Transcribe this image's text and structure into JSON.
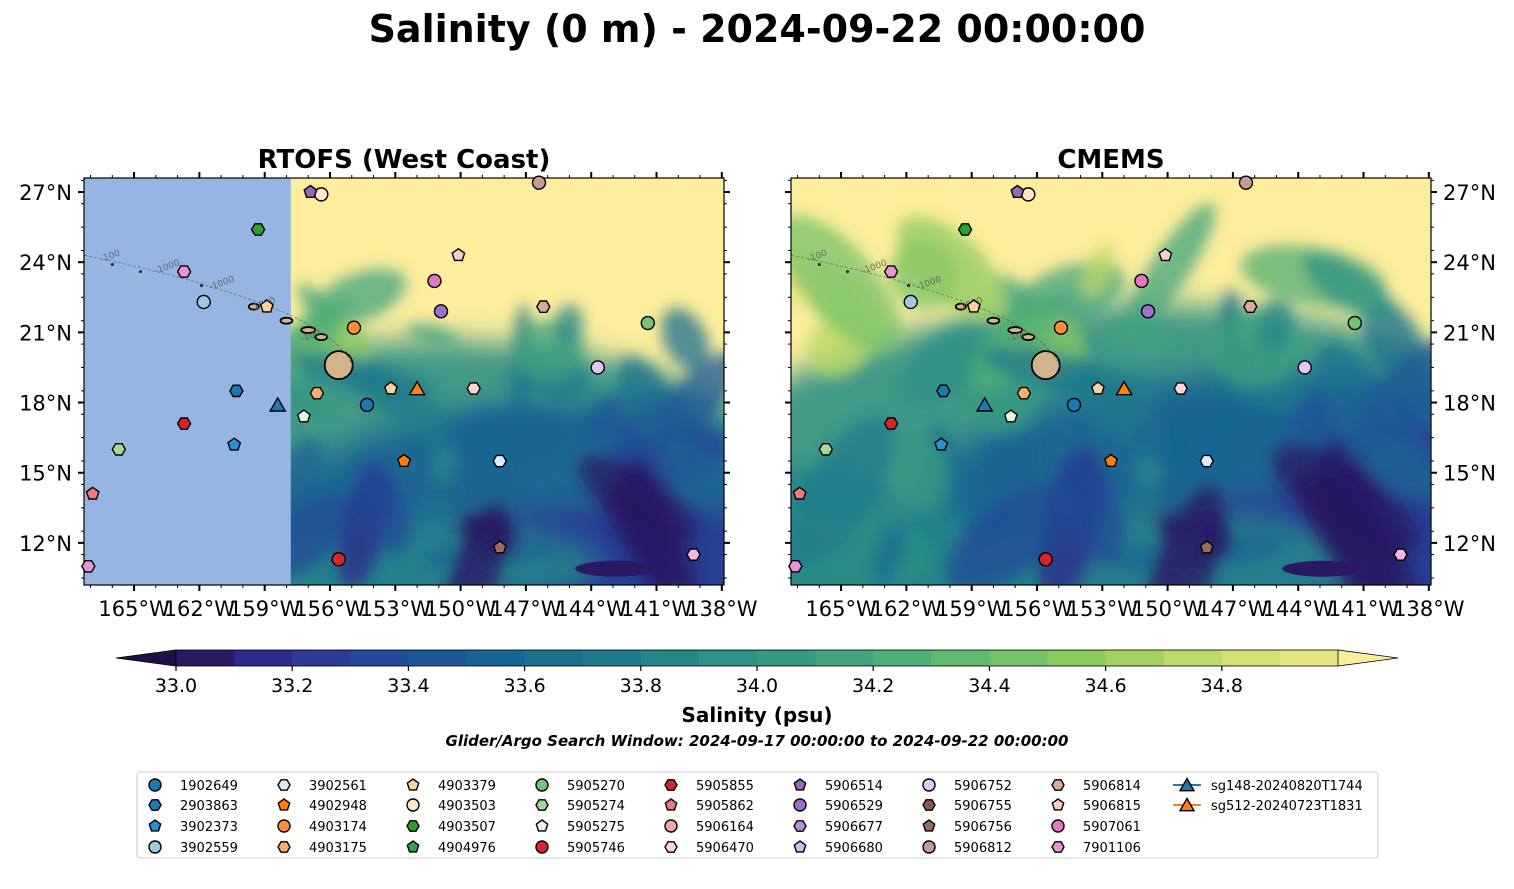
{
  "title": "Salinity (0 m) - 2024-09-22 00:00:00",
  "panels": [
    {
      "title": "RTOFS (West Coast)",
      "masked_left": true,
      "blob_scale": 1.0
    },
    {
      "title": "CMEMS",
      "masked_left": false,
      "blob_scale": 1.25
    }
  ],
  "lon_ticks": [
    "165°W",
    "162°W",
    "159°W",
    "156°W",
    "153°W",
    "150°W",
    "147°W",
    "144°W",
    "141°W",
    "138°W"
  ],
  "lon_values": [
    -165,
    -162,
    -159,
    -156,
    -153,
    -150,
    -147,
    -144,
    -141,
    -138
  ],
  "lat_ticks": [
    "27°N",
    "24°N",
    "21°N",
    "18°N",
    "15°N",
    "12°N"
  ],
  "lat_values": [
    27,
    24,
    21,
    18,
    15,
    12
  ],
  "extent": {
    "lon_min": -167.3,
    "lon_max": -137.9,
    "lat_min": 10.2,
    "lat_max": 27.6
  },
  "bathymetry_labels": [
    "-100",
    "-1000",
    "-1000",
    "-1000",
    "-100"
  ],
  "colorbar": {
    "label": "Salinity (psu)",
    "ticks": [
      "33.0",
      "33.2",
      "33.4",
      "33.6",
      "33.8",
      "34.0",
      "34.2",
      "34.4",
      "34.6",
      "34.8"
    ],
    "levels": [
      33.0,
      33.1,
      33.2,
      33.3,
      33.4,
      33.5,
      33.6,
      33.7,
      33.8,
      33.9,
      34.0,
      34.1,
      34.2,
      34.3,
      34.4,
      34.5,
      34.6,
      34.7,
      34.8,
      34.9
    ],
    "colors": [
      "#2a1a64",
      "#2d2a8c",
      "#2a3c96",
      "#234a98",
      "#1d5796",
      "#1a6493",
      "#1b6f8f",
      "#1f7a8c",
      "#258589",
      "#2e9086",
      "#379a82",
      "#42a47d",
      "#51ae76",
      "#62b86f",
      "#75c167",
      "#8bca60",
      "#a2d25f",
      "#bbda66",
      "#d3e171",
      "#e8e681"
    ],
    "under_color": "#1e0f48",
    "over_color": "#fcee9c",
    "mask_color": "#96b5e0"
  },
  "search_window": "Glider/Argo Search Window: 2024-09-17 00:00:00 to 2024-09-22 00:00:00",
  "markers": [
    {
      "id": "1902649",
      "shape": "circle",
      "color": "#1f77b4",
      "lon": -154.3,
      "lat": 17.9
    },
    {
      "id": "2903863",
      "shape": "hexagon",
      "color": "#1f77b4",
      "lon": -160.3,
      "lat": 18.5
    },
    {
      "id": "3902373",
      "shape": "pentagon",
      "color": "#2b8fd6",
      "lon": -160.4,
      "lat": 16.2
    },
    {
      "id": "3902559",
      "shape": "circle",
      "color": "#9ecae1",
      "lon": -161.8,
      "lat": 22.3
    },
    {
      "id": "3902561",
      "shape": "hexagon",
      "color": "#deebf7",
      "lon": -148.2,
      "lat": 15.5
    },
    {
      "id": "4902948",
      "shape": "pentagon",
      "color": "#ff7f0e",
      "lon": -152.6,
      "lat": 15.5
    },
    {
      "id": "4903174",
      "shape": "circle",
      "color": "#fd8d3c",
      "lon": -154.9,
      "lat": 21.2
    },
    {
      "id": "4903175",
      "shape": "hexagon",
      "color": "#fdae6b",
      "lon": -156.6,
      "lat": 18.4
    },
    {
      "id": "4903379",
      "shape": "pentagon",
      "color": "#fdd0a2",
      "lon": -153.2,
      "lat": 18.6
    },
    {
      "id": "4903503",
      "shape": "circle",
      "color": "#fee6ce",
      "lon": -156.4,
      "lat": 26.9
    },
    {
      "id": "4903507",
      "shape": "hexagon",
      "color": "#2ca02c",
      "lon": -159.3,
      "lat": 25.4
    },
    {
      "id": "4904976",
      "shape": "pentagon",
      "color": "#31a354",
      "lon": 0,
      "lat": 0,
      "hidden": true
    },
    {
      "id": "5905270",
      "shape": "circle",
      "color": "#74c476",
      "lon": -141.4,
      "lat": 21.4
    },
    {
      "id": "5905274",
      "shape": "hexagon",
      "color": "#a1d99b",
      "lon": -165.7,
      "lat": 16.0
    },
    {
      "id": "5905275",
      "shape": "pentagon",
      "color": "#e5f5e0",
      "lon": -157.2,
      "lat": 17.4
    },
    {
      "id": "5905746",
      "shape": "circle",
      "color": "#d62728",
      "lon": -155.6,
      "lat": 11.3
    },
    {
      "id": "5905855",
      "shape": "hexagon",
      "color": "#d62728",
      "lon": -162.7,
      "lat": 17.1
    },
    {
      "id": "5905862",
      "shape": "pentagon",
      "color": "#ef7a7a",
      "lon": -166.9,
      "lat": 14.1
    },
    {
      "id": "5906164",
      "shape": "circle",
      "color": "#f4a6a6",
      "lon": 0,
      "lat": 0,
      "hidden": true
    },
    {
      "id": "5906470",
      "shape": "hexagon",
      "color": "#fcd5d5",
      "lon": -149.4,
      "lat": 18.6
    },
    {
      "id": "5906514",
      "shape": "pentagon",
      "color": "#9467bd",
      "lon": -156.9,
      "lat": 27.0
    },
    {
      "id": "5906529",
      "shape": "circle",
      "color": "#9e6fcf",
      "lon": -150.9,
      "lat": 21.9
    },
    {
      "id": "5906677",
      "shape": "hexagon",
      "color": "#b18fde",
      "lon": 0,
      "lat": 0,
      "hidden": true
    },
    {
      "id": "5906680",
      "shape": "pentagon",
      "color": "#d4b9f0",
      "lon": 0,
      "lat": 0,
      "hidden": true
    },
    {
      "id": "5906752",
      "shape": "circle",
      "color": "#e2c7f4",
      "lon": -143.7,
      "lat": 19.5
    },
    {
      "id": "5906755",
      "shape": "hexagon",
      "color": "#8c564b",
      "lon": 0,
      "lat": 0,
      "hidden": true
    },
    {
      "id": "5906756",
      "shape": "pentagon",
      "color": "#9b6b60",
      "lon": -148.2,
      "lat": 11.8
    },
    {
      "id": "5906812",
      "shape": "circle",
      "color": "#c49c94",
      "lon": -146.4,
      "lat": 27.4
    },
    {
      "id": "5906814",
      "shape": "hexagon",
      "color": "#dbaa9b",
      "lon": -146.2,
      "lat": 22.1
    },
    {
      "id": "5906815",
      "shape": "pentagon",
      "color": "#f7cfc4",
      "lon": -150.1,
      "lat": 24.3
    },
    {
      "id": "5907061",
      "shape": "circle",
      "color": "#e377c2",
      "lon": -151.2,
      "lat": 23.2
    },
    {
      "id": "7901106",
      "shape": "hexagon",
      "color": "#e995d2",
      "lon": -162.7,
      "lat": 23.6
    },
    {
      "id": "sg148-20240820T1744",
      "shape": "triangle",
      "color": "#1f77b4",
      "lon": -158.4,
      "lat": 17.9,
      "line": true
    },
    {
      "id": "sg512-20240723T1831",
      "shape": "triangle",
      "color": "#ff7f0e",
      "lon": -152.0,
      "lat": 18.6,
      "line": true
    }
  ],
  "extra_markers": [
    {
      "shape": "pentagon",
      "color": "#fdd0a2",
      "lon": -158.9,
      "lat": 22.1
    },
    {
      "shape": "hexagon",
      "color": "#f7b6e0",
      "lon": -139.3,
      "lat": 11.5
    },
    {
      "shape": "hexagon",
      "color": "#e995d2",
      "lon": -167.1,
      "lat": 11.0
    }
  ]
}
